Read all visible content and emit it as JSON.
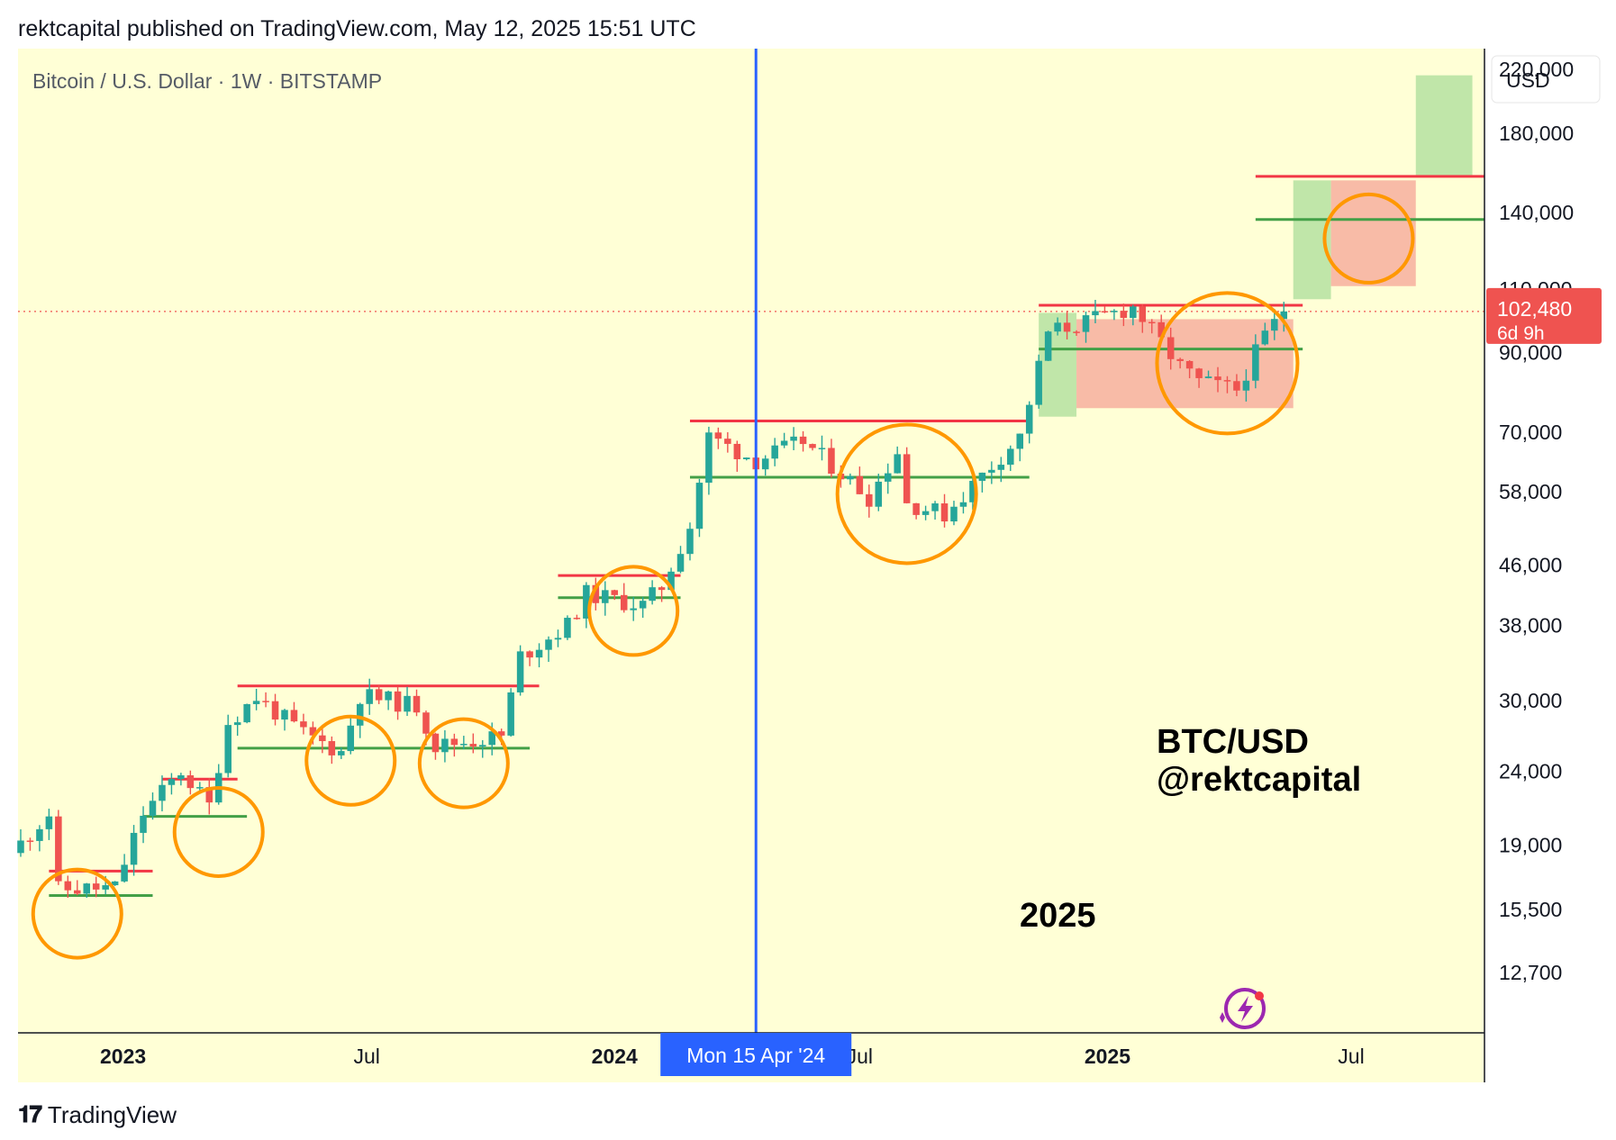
{
  "header": {
    "published_line": "rektcapital published on TradingView.com, May 12, 2025 15:51 UTC"
  },
  "footer": {
    "brand": "TradingView"
  },
  "colors": {
    "chart_bg": "#ffffd6",
    "up": "#26a69a",
    "down": "#ef5350",
    "resistance": "#f23645",
    "support": "#43a047",
    "circle": "#ff9800",
    "crosshair": "#2962ff",
    "price_label_bg": "#ef5350",
    "green_zone": "#b9e3a4",
    "red_zone": "#f7b4a2"
  },
  "chart_data": {
    "type": "candlestick",
    "title": "Bitcoin / U.S. Dollar · 1W · BITSTAMP",
    "scale": "log",
    "currency": "USD",
    "ylim": [
      10500,
      235000
    ],
    "y_ticks": [
      {
        "value": 220000,
        "label": "220,000"
      },
      {
        "value": 180000,
        "label": "180,000"
      },
      {
        "value": 140000,
        "label": "140,000"
      },
      {
        "value": 110000,
        "label": "110,000"
      },
      {
        "value": 90000,
        "label": "90,000"
      },
      {
        "value": 70000,
        "label": "70,000"
      },
      {
        "value": 58000,
        "label": "58,000"
      },
      {
        "value": 46000,
        "label": "46,000"
      },
      {
        "value": 38000,
        "label": "38,000"
      },
      {
        "value": 30000,
        "label": "30,000"
      },
      {
        "value": 24000,
        "label": "24,000"
      },
      {
        "value": 19000,
        "label": "19,000"
      },
      {
        "value": 15500,
        "label": "15,500"
      },
      {
        "value": 12700,
        "label": "12,700"
      }
    ],
    "x_range": [
      "2022-10-15",
      "2025-10-08"
    ],
    "x_ticks": [
      {
        "date": "2023-01-01",
        "label": "2023",
        "bold": true
      },
      {
        "date": "2023-07-01",
        "label": "Jul",
        "bold": false
      },
      {
        "date": "2024-01-01",
        "label": "2024",
        "bold": true
      },
      {
        "date": "2024-07-01",
        "label": "Jul",
        "bold": false
      },
      {
        "date": "2025-01-01",
        "label": "2025",
        "bold": true
      },
      {
        "date": "2025-07-01",
        "label": "Jul",
        "bold": false
      }
    ],
    "crosshair": {
      "date": "2024-04-15",
      "label": "Mon 15 Apr '24"
    },
    "last_price": {
      "value": 102480,
      "label": "102,480",
      "countdown": "6d 9h"
    },
    "candle_path": [
      {
        "date": "2022-10-17",
        "price": 19100
      },
      {
        "date": "2022-11-07",
        "price": 21000
      },
      {
        "date": "2022-11-14",
        "price": 16500
      },
      {
        "date": "2022-12-26",
        "price": 16600
      },
      {
        "date": "2023-01-16",
        "price": 21000
      },
      {
        "date": "2023-02-13",
        "price": 24000
      },
      {
        "date": "2023-03-06",
        "price": 21500
      },
      {
        "date": "2023-03-20",
        "price": 28000
      },
      {
        "date": "2023-04-10",
        "price": 30300
      },
      {
        "date": "2023-05-15",
        "price": 27000
      },
      {
        "date": "2023-06-12",
        "price": 25500
      },
      {
        "date": "2023-06-26",
        "price": 30500
      },
      {
        "date": "2023-08-07",
        "price": 29500
      },
      {
        "date": "2023-08-21",
        "price": 26000
      },
      {
        "date": "2023-10-09",
        "price": 26800
      },
      {
        "date": "2023-10-23",
        "price": 34500
      },
      {
        "date": "2023-11-27",
        "price": 38000
      },
      {
        "date": "2023-12-11",
        "price": 42000
      },
      {
        "date": "2024-01-22",
        "price": 40500
      },
      {
        "date": "2024-02-05",
        "price": 43000
      },
      {
        "date": "2024-02-26",
        "price": 52000
      },
      {
        "date": "2024-03-11",
        "price": 69000
      },
      {
        "date": "2024-04-15",
        "price": 64000
      },
      {
        "date": "2024-05-20",
        "price": 68000
      },
      {
        "date": "2024-06-24",
        "price": 60000
      },
      {
        "date": "2024-07-08",
        "price": 57000
      },
      {
        "date": "2024-07-29",
        "price": 66000
      },
      {
        "date": "2024-08-05",
        "price": 56000
      },
      {
        "date": "2024-09-02",
        "price": 54000
      },
      {
        "date": "2024-10-07",
        "price": 63000
      },
      {
        "date": "2024-10-28",
        "price": 69000
      },
      {
        "date": "2024-11-18",
        "price": 96000
      },
      {
        "date": "2024-12-16",
        "price": 99000
      },
      {
        "date": "2025-01-20",
        "price": 104000
      },
      {
        "date": "2025-02-24",
        "price": 86000
      },
      {
        "date": "2025-03-10",
        "price": 82000
      },
      {
        "date": "2025-04-07",
        "price": 80000
      },
      {
        "date": "2025-04-28",
        "price": 95000
      },
      {
        "date": "2025-05-12",
        "price": 102480
      }
    ],
    "resistance_levels": [
      {
        "from": "2022-11-07",
        "to": "2023-01-23",
        "price": 17500
      },
      {
        "from": "2023-01-30",
        "to": "2023-03-27",
        "price": 23400
      },
      {
        "from": "2023-03-27",
        "to": "2023-11-06",
        "price": 31400
      },
      {
        "from": "2023-11-20",
        "to": "2024-02-19",
        "price": 44500
      },
      {
        "from": "2024-02-26",
        "to": "2024-11-04",
        "price": 72500
      },
      {
        "from": "2024-11-11",
        "to": "2025-05-26",
        "price": 104500
      },
      {
        "from": "2025-04-21",
        "to": "2025-10-08",
        "price": 157000
      }
    ],
    "support_levels": [
      {
        "from": "2022-11-07",
        "to": "2023-01-23",
        "price": 16200
      },
      {
        "from": "2023-01-16",
        "to": "2023-04-03",
        "price": 20800
      },
      {
        "from": "2023-03-27",
        "to": "2023-10-30",
        "price": 25800
      },
      {
        "from": "2023-11-20",
        "to": "2024-02-19",
        "price": 41500
      },
      {
        "from": "2024-02-26",
        "to": "2024-11-04",
        "price": 60700
      },
      {
        "from": "2024-11-11",
        "to": "2025-05-26",
        "price": 91000
      },
      {
        "from": "2025-04-21",
        "to": "2025-10-08",
        "price": 137000
      }
    ],
    "zones": [
      {
        "color": "green",
        "from": "2024-11-11",
        "to": "2024-12-09",
        "top": 102000,
        "bottom": 73500
      },
      {
        "color": "red",
        "from": "2024-12-09",
        "to": "2025-05-19",
        "top": 100000,
        "bottom": 75500
      },
      {
        "color": "green",
        "from": "2025-05-19",
        "to": "2025-06-16",
        "top": 155000,
        "bottom": 106500
      },
      {
        "color": "red",
        "from": "2025-06-16",
        "to": "2025-08-18",
        "top": 155000,
        "bottom": 111000
      },
      {
        "color": "green",
        "from": "2025-08-18",
        "to": "2025-09-29",
        "top": 216000,
        "bottom": 157000
      }
    ],
    "highlight_circles": [
      {
        "date": "2022-11-28",
        "price": 15300
      },
      {
        "date": "2023-03-13",
        "price": 19800
      },
      {
        "date": "2023-06-19",
        "price": 24800
      },
      {
        "date": "2023-09-11",
        "price": 24600
      },
      {
        "date": "2024-01-15",
        "price": 39800
      },
      {
        "date": "2024-08-05",
        "price": 57600
      },
      {
        "date": "2025-03-31",
        "price": 87000
      },
      {
        "date": "2025-07-14",
        "price": 129000
      }
    ],
    "annotations": {
      "pair_label": "BTC/USD",
      "handle": "@rektcapital",
      "year_label": "2025"
    }
  }
}
